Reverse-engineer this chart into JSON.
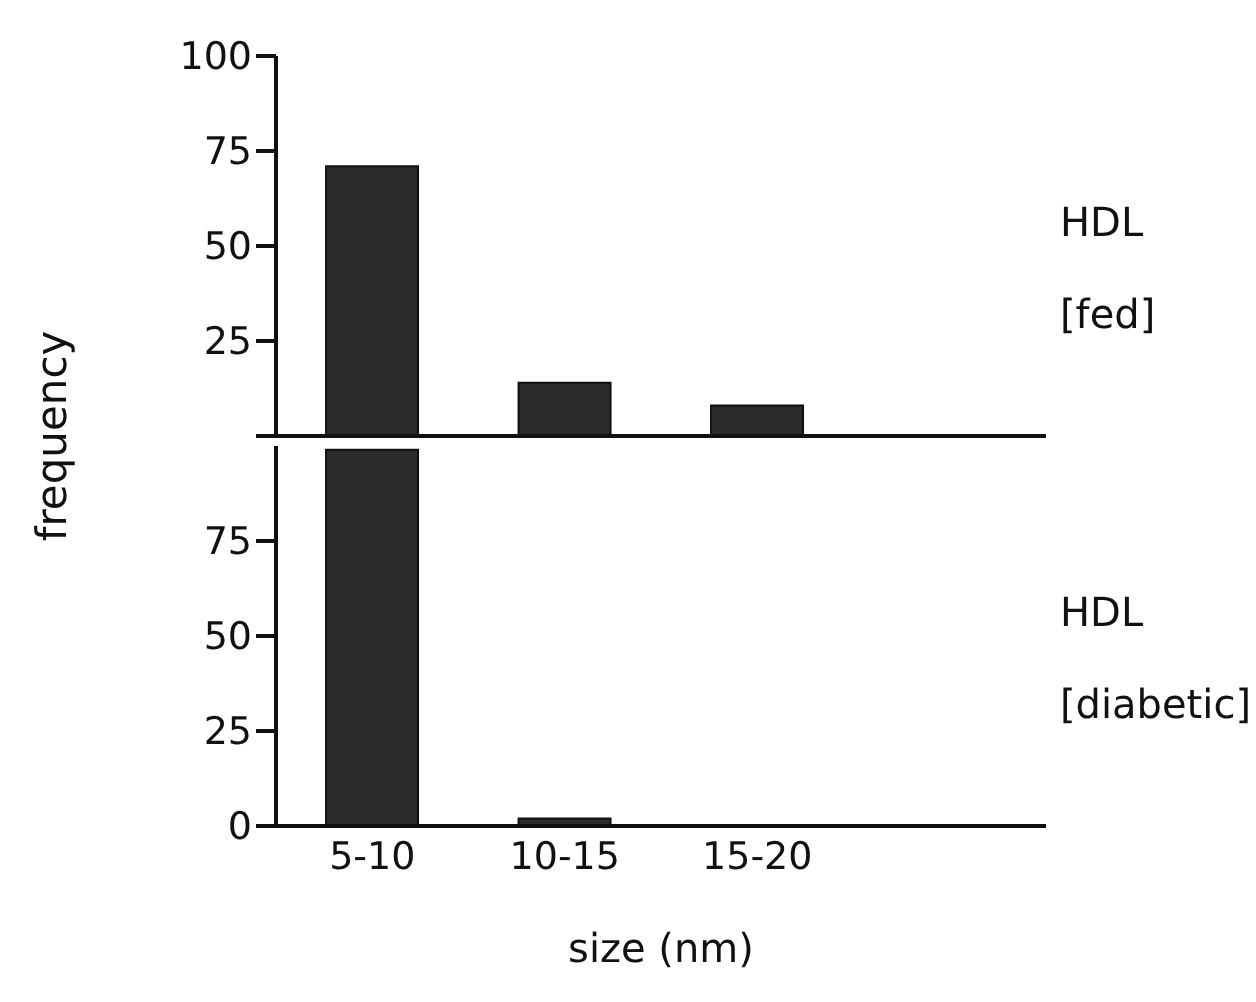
{
  "chart_data": [
    {
      "type": "bar",
      "ylabel": "frequency",
      "categories": [
        null,
        null,
        null,
        null
      ],
      "values": [
        71,
        14,
        8,
        null
      ],
      "color": "#2b2b2b",
      "ylim": [
        0,
        100
      ],
      "yticks": [
        {
          "value": 0,
          "label": null
        },
        25,
        50,
        75,
        100
      ],
      "tick_labels": "y",
      "grid": false,
      "legend": false,
      "annotations": [
        "HDL",
        "[fed]"
      ]
    },
    {
      "type": "bar",
      "xlabel": "size (nm)",
      "categories": [
        "5-10",
        "10-15",
        "15-20",
        null
      ],
      "values": [
        99,
        2,
        0,
        null
      ],
      "color": "#2b2b2b",
      "ylim": [
        0,
        100
      ],
      "yticks": [
        0,
        25,
        50,
        75
      ],
      "grid": false,
      "legend": false,
      "annotations": [
        "HDL",
        "[diabetic]"
      ]
    }
  ]
}
